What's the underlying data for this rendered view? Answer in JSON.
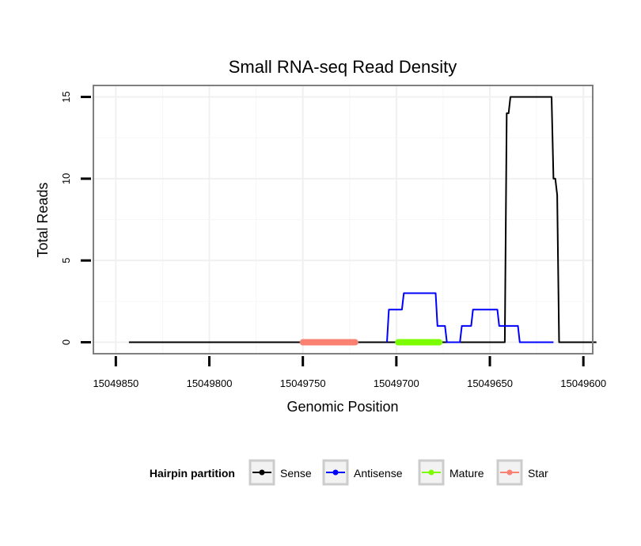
{
  "chart_data": {
    "type": "line",
    "title": "Small RNA-seq Read Density",
    "xlabel": "Genomic Position",
    "ylabel": "Total Reads",
    "xlim_reversed": [
      15049862,
      15049595
    ],
    "ylim": [
      -0.7,
      15.7
    ],
    "x_ticks": [
      15049850,
      15049800,
      15049750,
      15049700,
      15049650,
      15049600
    ],
    "x_tick_labels": [
      "15049850",
      "15049800",
      "15049750",
      "15049700",
      "15049650",
      "15049600"
    ],
    "y_ticks": [
      0,
      5,
      10,
      15
    ],
    "y_tick_labels": [
      "0",
      "5",
      "10",
      "15"
    ],
    "grid": true,
    "legend": {
      "title": "Hairpin partition",
      "position": "bottom",
      "entries": [
        "Sense",
        "Antisense",
        "Mature",
        "Star"
      ]
    },
    "colors": {
      "Sense": "#000000",
      "Antisense": "#0000ff",
      "Mature": "#7cfc00",
      "Star": "#fa8072"
    },
    "series": [
      {
        "name": "Sense",
        "points": [
          [
            15049843,
            0
          ],
          [
            15049642,
            0
          ],
          [
            15049641,
            14
          ],
          [
            15049640,
            14
          ],
          [
            15049639,
            15
          ],
          [
            15049617,
            15
          ],
          [
            15049616,
            10
          ],
          [
            15049615,
            10
          ],
          [
            15049614,
            9
          ],
          [
            15049613,
            0
          ],
          [
            15049593,
            0
          ]
        ]
      },
      {
        "name": "Antisense",
        "points": [
          [
            15049705,
            0
          ],
          [
            15049704,
            2
          ],
          [
            15049697,
            2
          ],
          [
            15049696,
            3
          ],
          [
            15049679,
            3
          ],
          [
            15049678,
            1
          ],
          [
            15049674,
            1
          ],
          [
            15049673,
            0
          ],
          [
            15049666,
            0
          ],
          [
            15049665,
            1
          ],
          [
            15049660,
            1
          ],
          [
            15049659,
            2
          ],
          [
            15049646,
            2
          ],
          [
            15049645,
            1
          ],
          [
            15049635,
            1
          ],
          [
            15049634,
            0
          ],
          [
            15049616,
            0
          ]
        ]
      },
      {
        "name": "Mature",
        "segment": [
          15049699,
          15049677
        ]
      },
      {
        "name": "Star",
        "segment": [
          15049750,
          15049722
        ]
      }
    ]
  }
}
